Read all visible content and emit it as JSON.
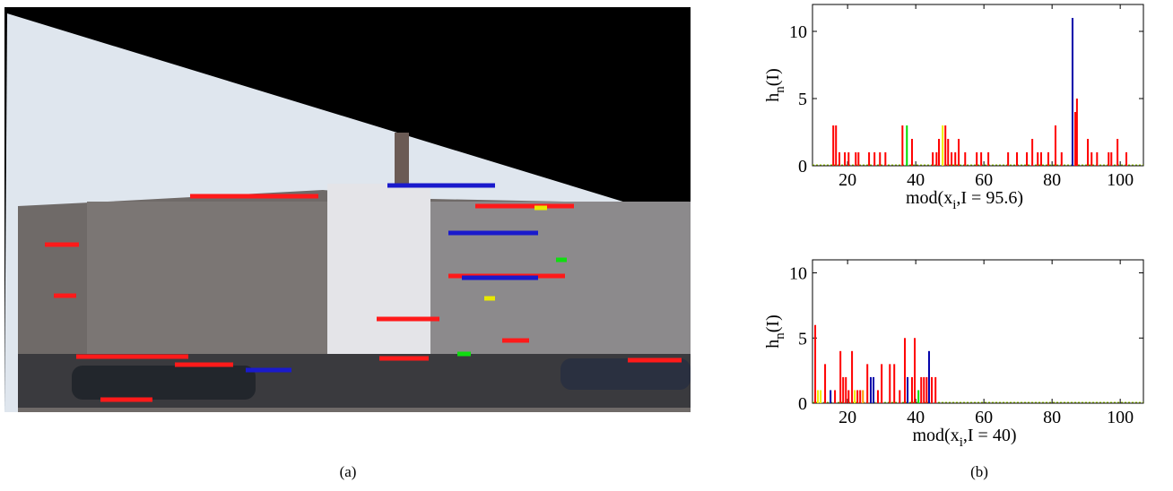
{
  "panel_a": {
    "caption": "(a)"
  },
  "panel_b": {
    "caption": "(b)"
  },
  "chart_data": [
    {
      "type": "bar",
      "ylabel": {
        "base": "h",
        "sub": "n",
        "rest": "(I)"
      },
      "xlabel": {
        "base": "mod(x",
        "sub": "i",
        "rest": ",I = 95.6)"
      },
      "xlim": [
        9.7,
        106.8
      ],
      "ylim": [
        0,
        12
      ],
      "xticks": [
        20,
        40,
        60,
        80,
        100
      ],
      "yticks": [
        0,
        5,
        10
      ],
      "series": [
        {
          "color": "#ff0000",
          "x": [
            15.8,
            16.6,
            17.6,
            19.2,
            20.3,
            22.4,
            23.2,
            26.3,
            27.9,
            29.5,
            31.1,
            36.1,
            38.9,
            45,
            46.1,
            46.8,
            48.7,
            49.5,
            50.5,
            51.6,
            52.6,
            54.5,
            57.9,
            59.2,
            61.3,
            67.1,
            69.7,
            72.6,
            74.2,
            75.8,
            76.8,
            78.9,
            81,
            82.8,
            86.8,
            87.3,
            90.5,
            91.6,
            93.2,
            96.6,
            97.4,
            99.2,
            101.8
          ],
          "values": [
            3,
            3,
            1,
            1,
            1,
            1,
            1,
            1,
            1,
            1,
            1,
            3,
            2,
            1,
            1,
            2,
            3,
            2,
            1,
            1,
            2,
            1,
            1,
            1,
            1,
            1,
            1,
            1,
            2,
            1,
            1,
            1,
            3,
            1,
            4,
            5,
            2,
            1,
            1,
            1,
            1,
            2,
            1
          ]
        },
        {
          "color": "#00dd00",
          "x": [
            37.4
          ],
          "values": [
            3
          ]
        },
        {
          "color": "#eeee00",
          "x": [
            47.9
          ],
          "values": [
            3
          ]
        },
        {
          "color": "#0000aa",
          "x": [
            86
          ],
          "values": [
            11
          ]
        }
      ]
    },
    {
      "type": "bar",
      "ylabel": {
        "base": "h",
        "sub": "n",
        "rest": "(I)"
      },
      "xlabel": {
        "base": "mod(x",
        "sub": "i",
        "rest": ",I = 40)"
      },
      "xlim": [
        9.7,
        106.8
      ],
      "ylim": [
        0,
        11
      ],
      "xticks": [
        20,
        40,
        60,
        80,
        100
      ],
      "yticks": [
        0,
        5,
        10
      ],
      "series": [
        {
          "color": "#ff0000",
          "x": [
            10.5,
            13.4,
            16.3,
            17.9,
            18.7,
            19.5,
            20.3,
            21.3,
            22.9,
            23.7,
            25.8,
            28.9,
            30,
            32.4,
            33.7,
            35.3,
            36.8,
            38.9,
            39.7,
            41.6,
            42.4,
            43.2,
            44.7,
            45.8
          ],
          "values": [
            6,
            3,
            1,
            4,
            2,
            2,
            1,
            4,
            1,
            1,
            3,
            1,
            3,
            3,
            3,
            1,
            5,
            2,
            5,
            2,
            2,
            2,
            2,
            2
          ]
        },
        {
          "color": "#eeee00",
          "x": [
            11.3,
            12.1,
            22.1
          ],
          "values": [
            1,
            1,
            1
          ]
        },
        {
          "color": "#ff9900",
          "x": [
            24.5
          ],
          "values": [
            1
          ]
        },
        {
          "color": "#00dd00",
          "x": [
            40.8
          ],
          "values": [
            1
          ]
        },
        {
          "color": "#0000aa",
          "x": [
            15,
            26.8,
            27.6,
            37.6,
            43.9
          ],
          "values": [
            1,
            2,
            2,
            2,
            4
          ]
        }
      ]
    }
  ]
}
